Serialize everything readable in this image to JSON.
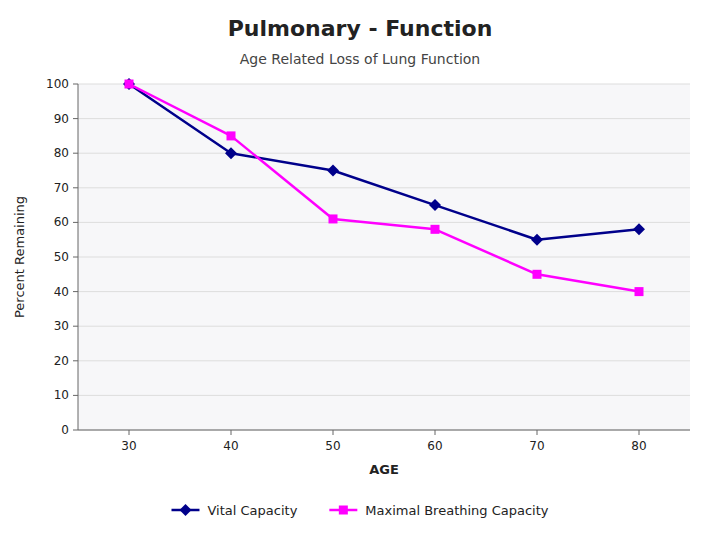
{
  "chart_data": {
    "type": "line",
    "title": "Pulmonary - Function",
    "subtitle": "Age Related Loss of Lung Function",
    "x_label": "AGE",
    "y_label": "Percent Remaining",
    "x": [
      30,
      40,
      50,
      60,
      70,
      80
    ],
    "series": [
      {
        "name": "Vital Capacity",
        "color": "#00008B",
        "marker": "diamond",
        "values": [
          100,
          80,
          75,
          65,
          55,
          58
        ]
      },
      {
        "name": "Maximal Breathing Capacity",
        "color": "#FF00FF",
        "marker": "square",
        "values": [
          100,
          85,
          61,
          58,
          45,
          40
        ]
      }
    ],
    "xlim": [
      25,
      85
    ],
    "xticks": [
      30,
      40,
      50,
      60,
      70,
      80
    ],
    "ylim": [
      0,
      100
    ],
    "yticks": [
      0,
      10,
      20,
      30,
      40,
      50,
      60,
      70,
      80,
      90,
      100
    ],
    "grid": true,
    "legend": "bottom"
  }
}
